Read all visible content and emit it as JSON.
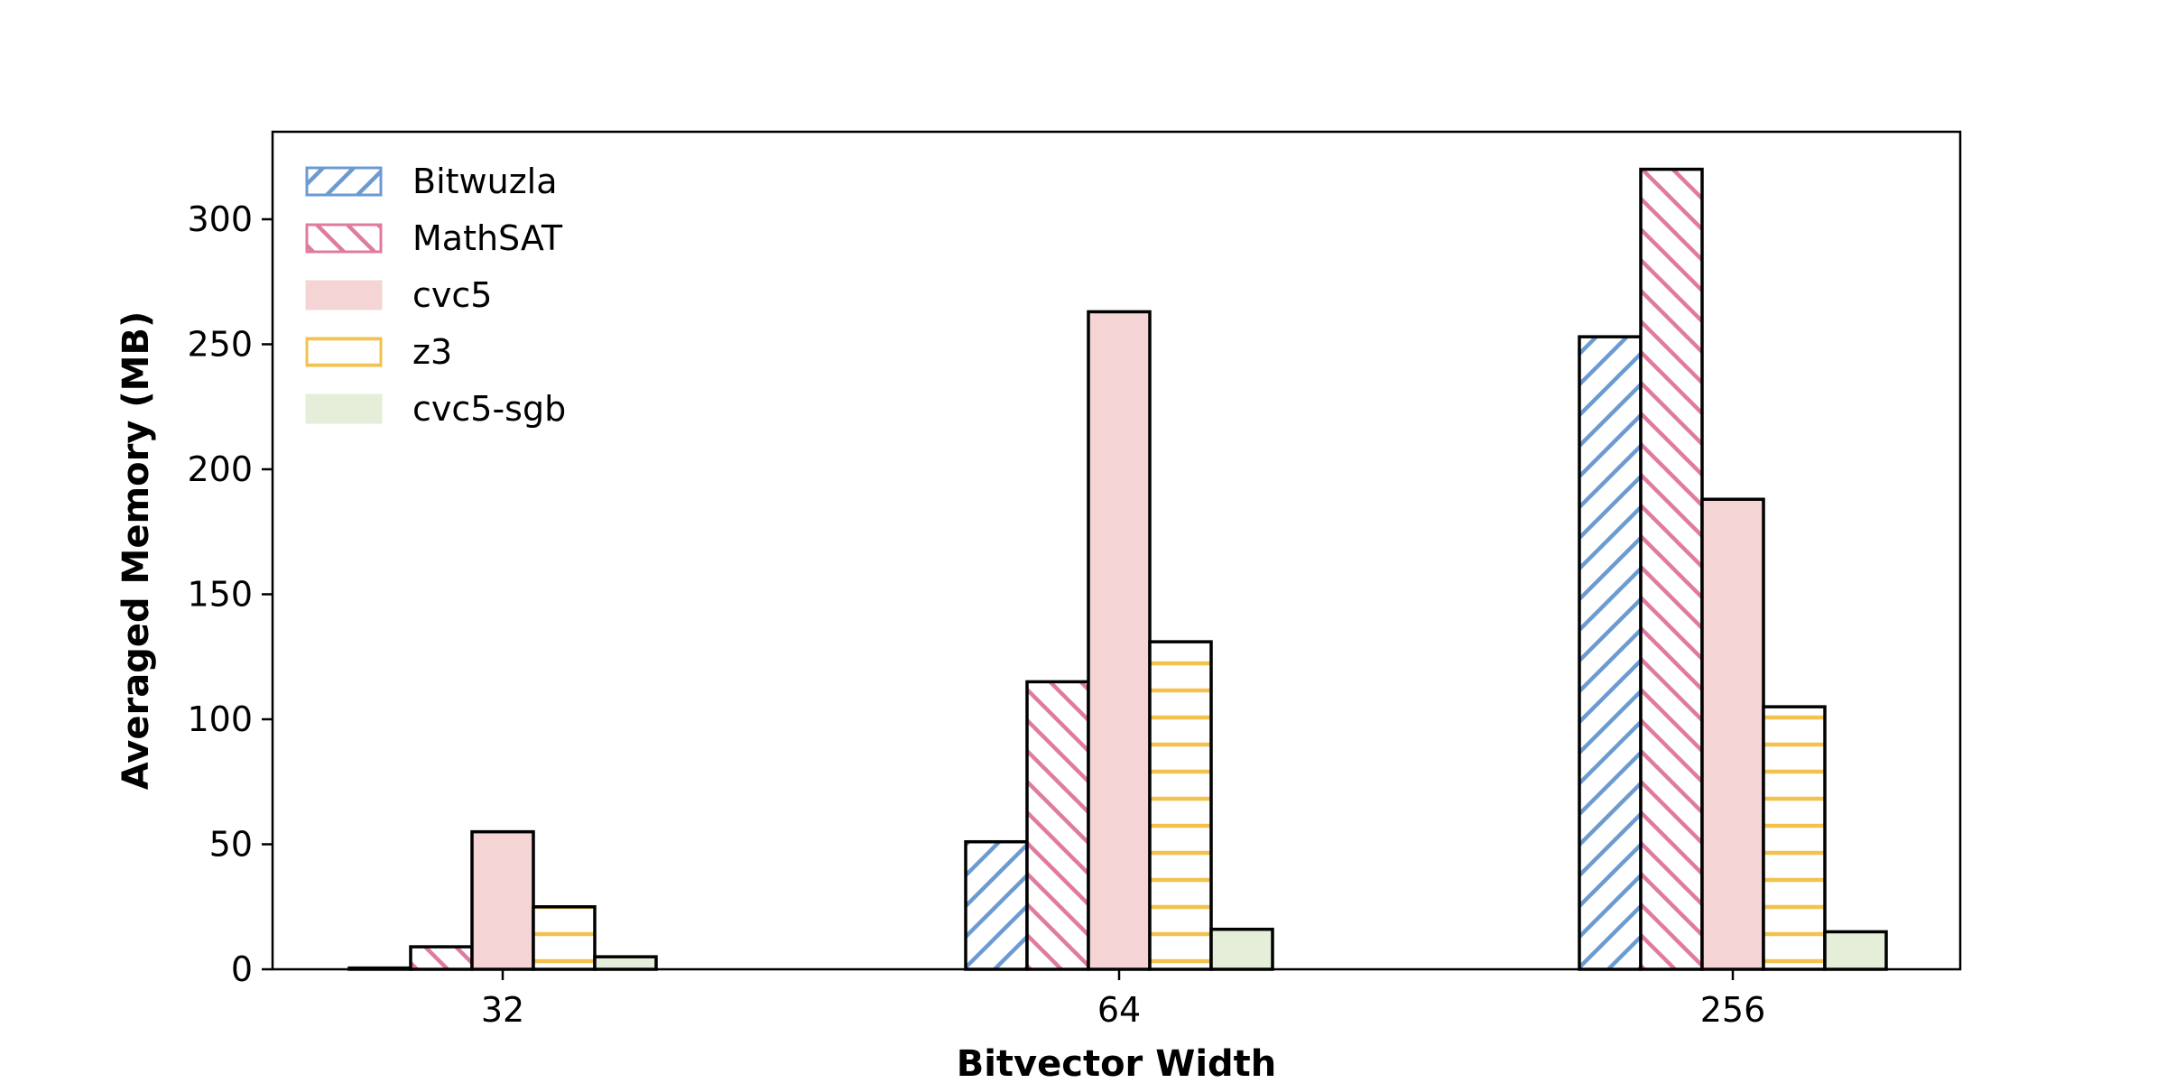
{
  "chart_data": {
    "type": "bar",
    "title": "",
    "xlabel": "Bitvector Width",
    "ylabel": "Averaged Memory (MB)",
    "categories": [
      "32",
      "64",
      "256"
    ],
    "ylim": [
      0,
      335
    ],
    "yticks": [
      0,
      50,
      100,
      150,
      200,
      250,
      300
    ],
    "grid": false,
    "legend_position": "top-left",
    "series": [
      {
        "name": "Bitwuzla",
        "values": [
          0.5,
          51,
          253
        ],
        "color": "#6b9bd2",
        "fill": "#ffffff",
        "hatch": "forward-diagonal"
      },
      {
        "name": "MathSAT",
        "values": [
          9,
          115,
          320
        ],
        "color": "#e07b9f",
        "fill": "#ffffff",
        "hatch": "back-diagonal"
      },
      {
        "name": "cvc5",
        "values": [
          55,
          263,
          188
        ],
        "color": "#f4d4d4",
        "fill": "#f4d4d4",
        "hatch": "none"
      },
      {
        "name": "z3",
        "values": [
          25,
          131,
          105
        ],
        "color": "#f2c14e",
        "fill": "#ffffff",
        "hatch": "horizontal"
      },
      {
        "name": "cvc5-sgb",
        "values": [
          5,
          16,
          15
        ],
        "color": "#e4eed9",
        "fill": "#e4eed9",
        "hatch": "none"
      }
    ]
  }
}
